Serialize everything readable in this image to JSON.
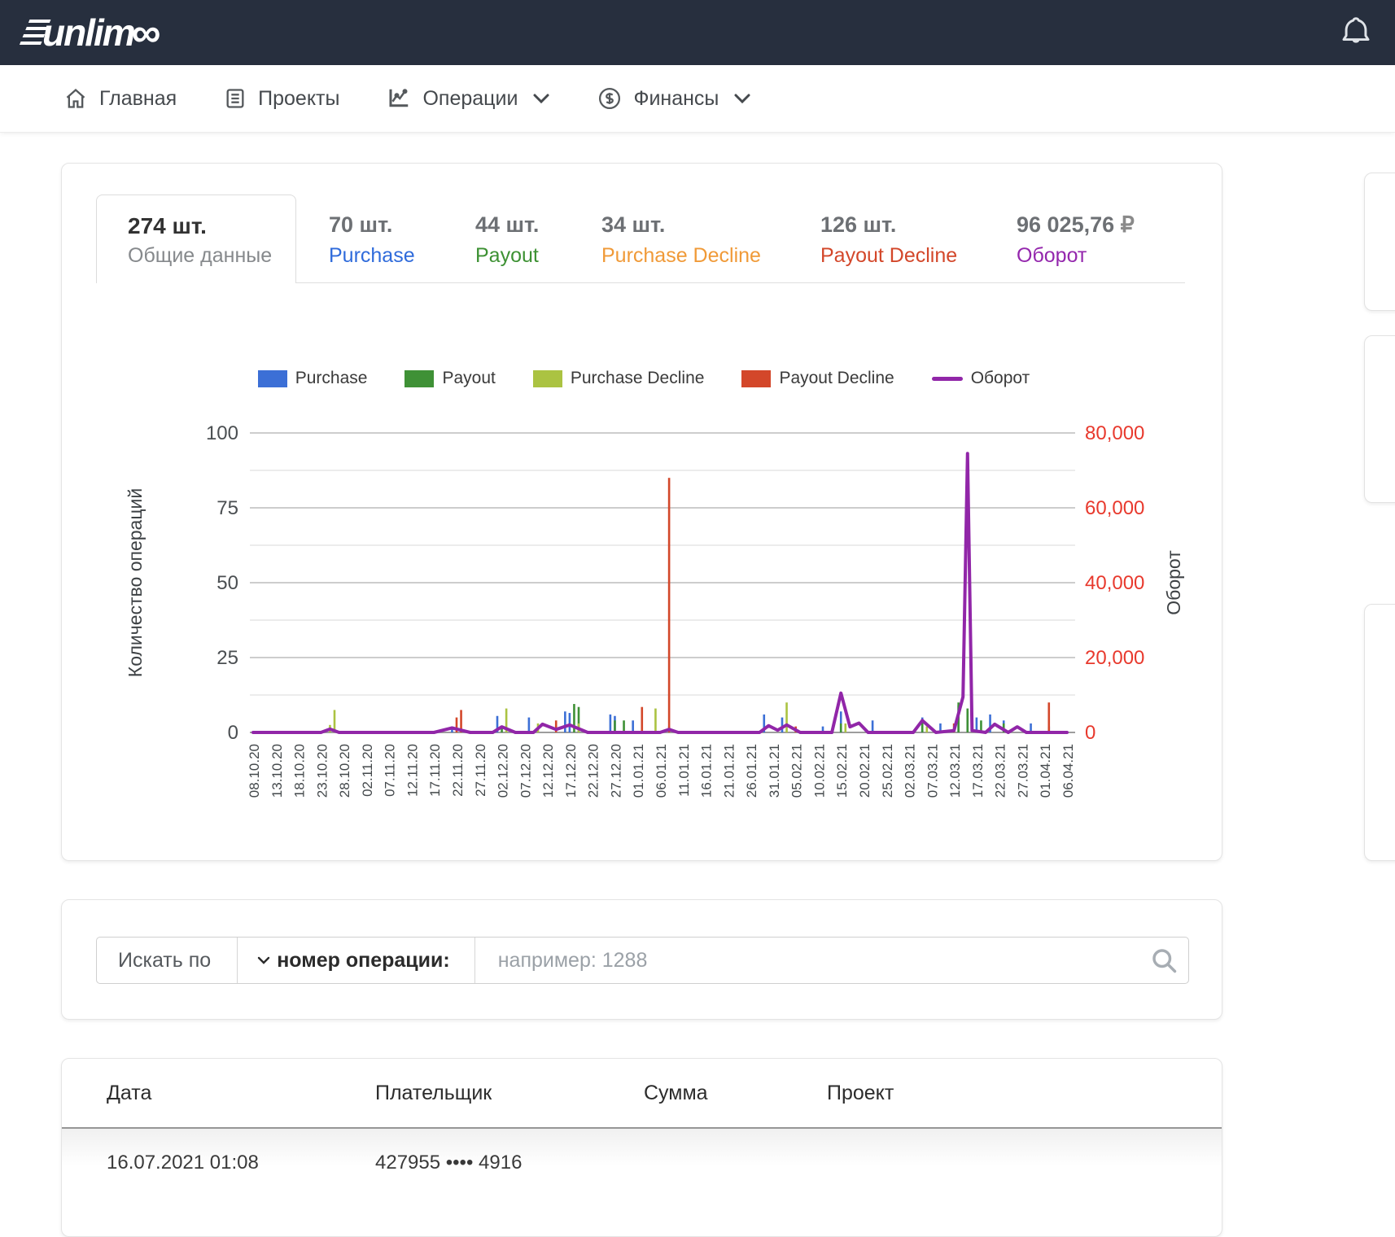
{
  "header": {
    "logo_text": "unlim",
    "logo_infinity": "∞"
  },
  "nav": {
    "items": [
      {
        "label": "Главная"
      },
      {
        "label": "Проекты"
      },
      {
        "label": "Операции",
        "has_dropdown": true
      },
      {
        "label": "Финансы",
        "has_dropdown": true
      }
    ]
  },
  "stats": {
    "active_tab": {
      "value": "274 шт.",
      "label": "Общие данные"
    },
    "items": [
      {
        "value": "70 шт.",
        "label": "Purchase",
        "color": "#2f6bdb"
      },
      {
        "value": "44 шт.",
        "label": "Payout",
        "color": "#3d9133"
      },
      {
        "value": "34 шт.",
        "label": "Purchase Decline",
        "color": "#f09a38"
      },
      {
        "value": "126 шт.",
        "label": "Payout Decline",
        "color": "#d3472a"
      },
      {
        "value": "96 025,76",
        "suffix": " ₽",
        "label": "Оборот",
        "color": "#9427ad"
      }
    ]
  },
  "chart_data": {
    "type": "bar+line",
    "title": "",
    "grid": true,
    "legend_position": "top",
    "left_axis": {
      "label": "Количество операций",
      "ticks": [
        100,
        75,
        50,
        25,
        0
      ],
      "max": 100
    },
    "right_axis": {
      "label": "Оборот",
      "ticks": [
        "80,000",
        "60,000",
        "40,000",
        "20,000",
        "0"
      ],
      "max": 80000
    },
    "x_tick_labels": [
      "08.10.20",
      "13.10.20",
      "18.10.20",
      "23.10.20",
      "28.10.20",
      "02.11.20",
      "07.11.20",
      "12.11.20",
      "17.11.20",
      "22.11.20",
      "27.11.20",
      "02.12.20",
      "07.12.20",
      "12.12.20",
      "17.12.20",
      "22.12.20",
      "27.12.20",
      "01.01.21",
      "06.01.21",
      "11.01.21",
      "16.01.21",
      "21.01.21",
      "26.01.21",
      "31.01.21",
      "05.02.21",
      "10.02.21",
      "15.02.21",
      "20.02.21",
      "25.02.21",
      "02.03.21",
      "07.03.21",
      "12.03.21",
      "17.03.21",
      "22.03.21",
      "27.03.21",
      "01.04.21",
      "06.04.21"
    ],
    "days_span": 180,
    "legend": [
      {
        "label": "Purchase",
        "color": "#3c6fd6",
        "type": "box"
      },
      {
        "label": "Payout",
        "color": "#3f9136",
        "type": "box"
      },
      {
        "label": "Purchase Decline",
        "color": "#abc342",
        "type": "box"
      },
      {
        "label": "Payout Decline",
        "color": "#d3472a",
        "type": "box"
      },
      {
        "label": "Оборот",
        "color": "#9126a8",
        "type": "line"
      }
    ],
    "series": [
      {
        "name": "Purchase",
        "color": "#3c6fd6",
        "points": [
          [
            17,
            1
          ],
          [
            44,
            2
          ],
          [
            54,
            5.5
          ],
          [
            61,
            5
          ],
          [
            69,
            7
          ],
          [
            70,
            6.5
          ],
          [
            79,
            6
          ],
          [
            80,
            5.5
          ],
          [
            84,
            4
          ],
          [
            92,
            2
          ],
          [
            113,
            6
          ],
          [
            117,
            5
          ],
          [
            126,
            2
          ],
          [
            130,
            7
          ],
          [
            137,
            4
          ],
          [
            148,
            5
          ],
          [
            152,
            3
          ],
          [
            156,
            9
          ],
          [
            158,
            7
          ],
          [
            160,
            5
          ],
          [
            163,
            6
          ],
          [
            166,
            4
          ],
          [
            172,
            3
          ],
          [
            176,
            2
          ]
        ]
      },
      {
        "name": "Payout",
        "color": "#3f9136",
        "points": [
          [
            55,
            2
          ],
          [
            71,
            9.5
          ],
          [
            72,
            8.5
          ],
          [
            80,
            4
          ],
          [
            82,
            4
          ],
          [
            130,
            3
          ],
          [
            148,
            4
          ],
          [
            156,
            10
          ],
          [
            158,
            8
          ],
          [
            161,
            4
          ],
          [
            166,
            3
          ]
        ]
      },
      {
        "name": "Purchase Decline",
        "color": "#abc342",
        "points": [
          [
            17,
            2.5
          ],
          [
            18,
            7.5
          ],
          [
            56,
            8
          ],
          [
            63,
            3
          ],
          [
            72,
            3
          ],
          [
            89,
            8
          ],
          [
            118,
            10
          ],
          [
            131,
            3
          ],
          [
            149,
            2
          ]
        ]
      },
      {
        "name": "Payout Decline",
        "color": "#d3472a",
        "points": [
          [
            45,
            5
          ],
          [
            46,
            7.5
          ],
          [
            67,
            4
          ],
          [
            86,
            8.5
          ],
          [
            92,
            85
          ],
          [
            120,
            2
          ],
          [
            155,
            3
          ],
          [
            176,
            10
          ]
        ]
      }
    ],
    "line_series": {
      "name": "Оборот",
      "color": "#9126a8",
      "points": [
        [
          0,
          0
        ],
        [
          15,
          0
        ],
        [
          17,
          900
        ],
        [
          19,
          0
        ],
        [
          40,
          0
        ],
        [
          44,
          1200
        ],
        [
          48,
          0
        ],
        [
          53,
          0
        ],
        [
          55,
          1500
        ],
        [
          58,
          0
        ],
        [
          62,
          0
        ],
        [
          64,
          2200
        ],
        [
          67,
          800
        ],
        [
          70,
          2000
        ],
        [
          74,
          0
        ],
        [
          90,
          0
        ],
        [
          92,
          800
        ],
        [
          94,
          0
        ],
        [
          112,
          0
        ],
        [
          114,
          1800
        ],
        [
          116,
          600
        ],
        [
          118,
          2000
        ],
        [
          121,
          0
        ],
        [
          128,
          0
        ],
        [
          130,
          10500
        ],
        [
          132,
          1500
        ],
        [
          134,
          2500
        ],
        [
          136,
          0
        ],
        [
          146,
          0
        ],
        [
          148,
          3200
        ],
        [
          151,
          0
        ],
        [
          155,
          500
        ],
        [
          157,
          9500
        ],
        [
          158,
          74500
        ],
        [
          159,
          500
        ],
        [
          162,
          0
        ],
        [
          164,
          2200
        ],
        [
          167,
          0
        ],
        [
          169,
          1500
        ],
        [
          171,
          0
        ],
        [
          180,
          0
        ]
      ]
    }
  },
  "search": {
    "prefix": "Искать по",
    "field_selector": "номер операции:",
    "placeholder": "например: 1288"
  },
  "table": {
    "columns": [
      "Дата",
      "Плательщик",
      "Сумма",
      "Проект"
    ],
    "rows": [
      {
        "date": "16.07.2021 01:08",
        "payer": "427955 •••• 4916",
        "sum": "",
        "project": ""
      }
    ]
  }
}
